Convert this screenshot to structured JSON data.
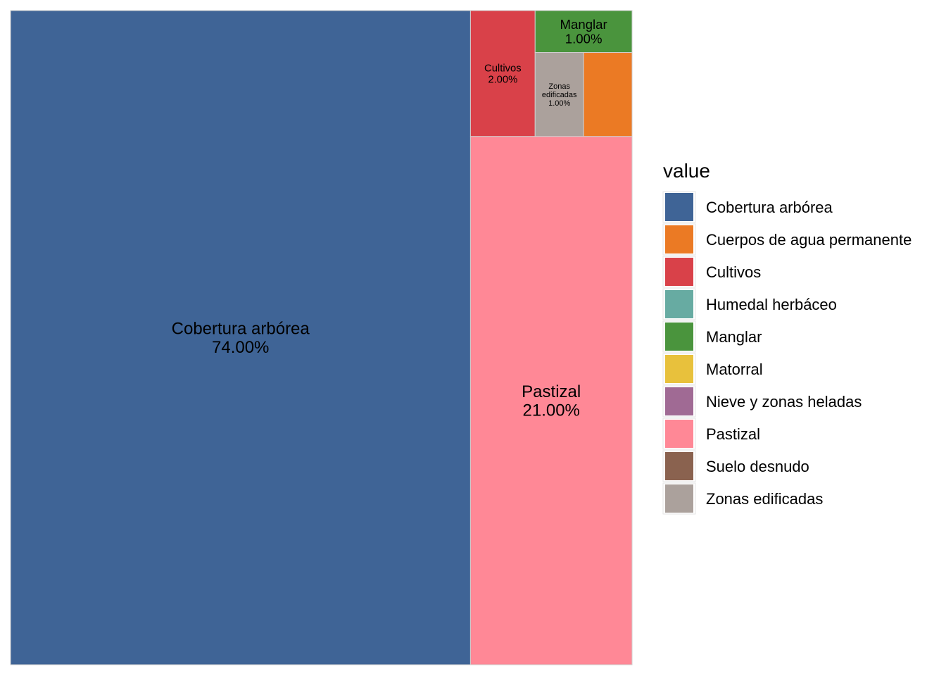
{
  "chart_data": {
    "type": "treemap",
    "title": "",
    "legend_title": "value",
    "legend_placement": "right",
    "categories": [
      {
        "name": "Cobertura arbórea",
        "color": "#3F6496"
      },
      {
        "name": "Cuerpos de agua permanente",
        "color": "#EB7A24"
      },
      {
        "name": "Cultivos",
        "color": "#D94149"
      },
      {
        "name": "Humedal herbáceo",
        "color": "#67ABA2"
      },
      {
        "name": "Manglar",
        "color": "#4A943D"
      },
      {
        "name": "Matorral",
        "color": "#E8C13C"
      },
      {
        "name": "Nieve y zonas heladas",
        "color": "#A06A94"
      },
      {
        "name": "Pastizal",
        "color": "#FF8896"
      },
      {
        "name": "Suelo desnudo",
        "color": "#8A624F"
      },
      {
        "name": "Zonas edificadas",
        "color": "#ABA19C"
      }
    ],
    "tiles": [
      {
        "name": "Cobertura arbórea",
        "value": 74,
        "label": "74.00%"
      },
      {
        "name": "Pastizal",
        "value": 21,
        "label": "21.00%"
      },
      {
        "name": "Cultivos",
        "value": 2,
        "label": "2.00%"
      },
      {
        "name": "Manglar",
        "value": 1,
        "label": "1.00%"
      },
      {
        "name": "Zonas edificadas",
        "value": 1,
        "label": "1.00%"
      },
      {
        "name": "Cuerpos de agua permanente",
        "value": 1,
        "label": ""
      }
    ]
  }
}
